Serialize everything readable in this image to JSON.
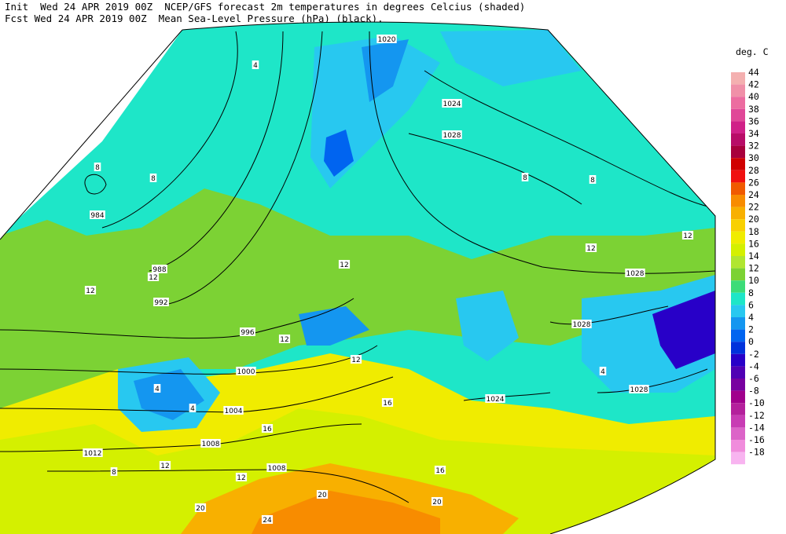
{
  "header": {
    "line1": "Init  Wed 24 APR 2019 00Z  NCEP/GFS forecast 2m temperatures in degrees Celcius (shaded)",
    "line2": "Fcst Wed 24 APR 2019 00Z  Mean Sea-Level Pressure (hPa) (black)."
  },
  "legend": {
    "title": "deg. C",
    "levels": [
      {
        "label": "44",
        "color": "#f4b0b0"
      },
      {
        "label": "42",
        "color": "#f090a8"
      },
      {
        "label": "40",
        "color": "#ec6ca0"
      },
      {
        "label": "38",
        "color": "#e04898"
      },
      {
        "label": "36",
        "color": "#d02088"
      },
      {
        "label": "34",
        "color": "#b80c68"
      },
      {
        "label": "32",
        "color": "#a8003c"
      },
      {
        "label": "30",
        "color": "#d00000"
      },
      {
        "label": "28",
        "color": "#f01010"
      },
      {
        "label": "26",
        "color": "#f05a00"
      },
      {
        "label": "24",
        "color": "#f88c00"
      },
      {
        "label": "22",
        "color": "#f8b000"
      },
      {
        "label": "20",
        "color": "#f8d000"
      },
      {
        "label": "18",
        "color": "#f0ec00"
      },
      {
        "label": "16",
        "color": "#d4f000"
      },
      {
        "label": "14",
        "color": "#b0e630"
      },
      {
        "label": "12",
        "color": "#7cd234"
      },
      {
        "label": "10",
        "color": "#3cdc78"
      },
      {
        "label": "8",
        "color": "#1ee6c8"
      },
      {
        "label": "6",
        "color": "#28c8f0"
      },
      {
        "label": "4",
        "color": "#1496f0"
      },
      {
        "label": "2",
        "color": "#0064f0"
      },
      {
        "label": "0",
        "color": "#0032dc"
      },
      {
        "label": "-2",
        "color": "#2800c8"
      },
      {
        "label": "-4",
        "color": "#5000b4"
      },
      {
        "label": "-6",
        "color": "#7800a0"
      },
      {
        "label": "-8",
        "color": "#a0008c"
      },
      {
        "label": "-10",
        "color": "#b4209c"
      },
      {
        "label": "-12",
        "color": "#c83cb4"
      },
      {
        "label": "-14",
        "color": "#dc64c8"
      },
      {
        "label": "-16",
        "color": "#f08cdc"
      },
      {
        "label": "-18",
        "color": "#f8b4f0"
      }
    ]
  },
  "map": {
    "pressure_labels": [
      "1020",
      "1024",
      "1028",
      "984",
      "988",
      "992",
      "996",
      "1000",
      "1004",
      "1008",
      "1012",
      "1008",
      "1028",
      "1028",
      "1028",
      "1024"
    ],
    "temperature_labels": [
      "4",
      "8",
      "8",
      "12",
      "12",
      "12",
      "12",
      "12",
      "16",
      "16",
      "16",
      "20",
      "20",
      "20",
      "24",
      "12",
      "12",
      "8",
      "8",
      "4",
      "4",
      "4",
      "8",
      "12",
      "12"
    ]
  }
}
